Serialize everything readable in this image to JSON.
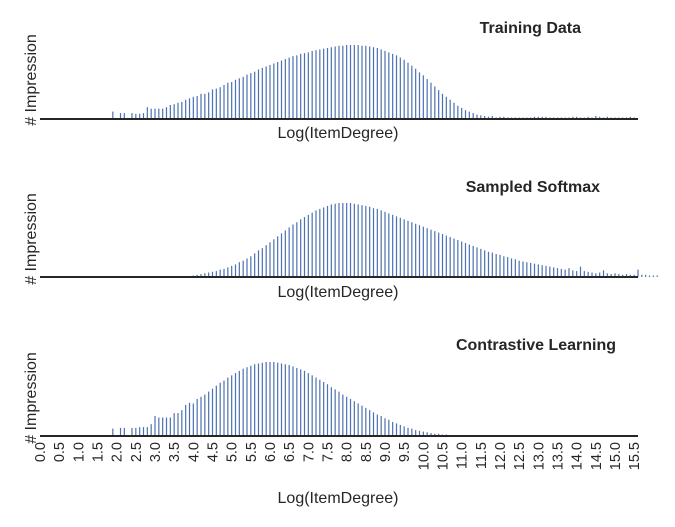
{
  "chart_data": [
    {
      "type": "bar",
      "title": "Training Data",
      "xlabel": "Log(ItemDegree)",
      "ylabel": "# Impression",
      "xlim": [
        0.0,
        15.6
      ],
      "bin_width": 0.1,
      "bar_color": "#4c72b0",
      "x_start": 1.9,
      "values": [
        0.1,
        0,
        0.08,
        0.08,
        0,
        0.08,
        0.07,
        0.07,
        0.08,
        0.16,
        0.14,
        0.14,
        0.14,
        0.14,
        0.16,
        0.19,
        0.2,
        0.22,
        0.23,
        0.26,
        0.28,
        0.3,
        0.31,
        0.34,
        0.34,
        0.36,
        0.4,
        0.41,
        0.43,
        0.46,
        0.49,
        0.5,
        0.53,
        0.55,
        0.57,
        0.6,
        0.62,
        0.64,
        0.67,
        0.69,
        0.71,
        0.73,
        0.75,
        0.77,
        0.79,
        0.81,
        0.83,
        0.85,
        0.86,
        0.88,
        0.89,
        0.9,
        0.92,
        0.93,
        0.94,
        0.95,
        0.96,
        0.97,
        0.98,
        0.99,
        0.99,
        1.0,
        1.0,
        1.0,
        1.0,
        0.99,
        0.99,
        0.98,
        0.97,
        0.96,
        0.94,
        0.92,
        0.9,
        0.88,
        0.86,
        0.83,
        0.8,
        0.76,
        0.72,
        0.68,
        0.63,
        0.59,
        0.54,
        0.49,
        0.44,
        0.39,
        0.34,
        0.3,
        0.26,
        0.22,
        0.18,
        0.15,
        0.12,
        0.1,
        0.08,
        0.06,
        0.05,
        0.04,
        0.03,
        0.04,
        0.02,
        0.03,
        0.03,
        0.02,
        0.02,
        0.02,
        0.02,
        0.02,
        0.02,
        0.02,
        0.03,
        0.03,
        0.03,
        0.03,
        0.02,
        0.02,
        0.02,
        0.02,
        0.02,
        0.02,
        0.03,
        0.03,
        0.02,
        0.02,
        0.03,
        0.02,
        0.04,
        0.03,
        0.02,
        0.03,
        0.02,
        0.02,
        0.02,
        0.02,
        0.02,
        0.03,
        0.02
      ]
    },
    {
      "type": "bar",
      "title": "Sampled Softmax",
      "xlabel": "Log(ItemDegree)",
      "ylabel": "# Impression",
      "xlim": [
        0.0,
        15.6
      ],
      "bin_width": 0.1,
      "bar_color": "#4c72b0",
      "x_start": 4.0,
      "values": [
        0.02,
        0.03,
        0.04,
        0.05,
        0.06,
        0.07,
        0.08,
        0.1,
        0.11,
        0.13,
        0.15,
        0.17,
        0.2,
        0.22,
        0.25,
        0.28,
        0.32,
        0.36,
        0.39,
        0.43,
        0.47,
        0.51,
        0.55,
        0.59,
        0.63,
        0.67,
        0.71,
        0.74,
        0.78,
        0.81,
        0.84,
        0.87,
        0.9,
        0.92,
        0.94,
        0.96,
        0.98,
        0.99,
        1.0,
        1.0,
        1.0,
        1.0,
        0.99,
        0.98,
        0.97,
        0.96,
        0.95,
        0.93,
        0.92,
        0.9,
        0.88,
        0.86,
        0.84,
        0.82,
        0.8,
        0.78,
        0.76,
        0.74,
        0.72,
        0.7,
        0.68,
        0.66,
        0.64,
        0.62,
        0.6,
        0.58,
        0.56,
        0.54,
        0.52,
        0.5,
        0.48,
        0.46,
        0.44,
        0.42,
        0.4,
        0.38,
        0.36,
        0.34,
        0.33,
        0.31,
        0.3,
        0.28,
        0.27,
        0.25,
        0.24,
        0.22,
        0.21,
        0.2,
        0.19,
        0.18,
        0.17,
        0.16,
        0.15,
        0.14,
        0.13,
        0.12,
        0.11,
        0.1,
        0.12,
        0.09,
        0.08,
        0.14,
        0.08,
        0.07,
        0.06,
        0.05,
        0.06,
        0.09,
        0.05,
        0.04,
        0.05,
        0.04,
        0.03,
        0.04,
        0.03,
        0.03,
        0.1,
        0.03,
        0.03,
        0.02,
        0.02,
        0.02
      ]
    },
    {
      "type": "bar",
      "title": "Contrastive Learning",
      "xlabel": "Log(ItemDegree)",
      "ylabel": "# Impression",
      "xlim": [
        0.0,
        15.6
      ],
      "bin_width": 0.1,
      "bar_color": "#4c72b0",
      "x_start": 1.9,
      "x_ticks": [
        "0.0",
        "0.5",
        "1.0",
        "1.5",
        "2.0",
        "2.5",
        "3.0",
        "3.5",
        "4.0",
        "4.5",
        "5.0",
        "5.5",
        "6.0",
        "6.5",
        "7.0",
        "7.5",
        "8.0",
        "8.5",
        "9.0",
        "9.5",
        "10.0",
        "10.5",
        "11.0",
        "11.5",
        "12.0",
        "12.5",
        "13.0",
        "13.5",
        "14.0",
        "14.5",
        "15.0",
        "15.5"
      ],
      "values": [
        0.1,
        0,
        0.11,
        0.11,
        0,
        0.11,
        0.11,
        0.12,
        0.12,
        0.12,
        0.16,
        0.27,
        0.25,
        0.25,
        0.25,
        0.25,
        0.31,
        0.31,
        0.35,
        0.42,
        0.45,
        0.44,
        0.5,
        0.53,
        0.56,
        0.6,
        0.64,
        0.68,
        0.72,
        0.75,
        0.79,
        0.82,
        0.85,
        0.88,
        0.91,
        0.93,
        0.95,
        0.97,
        0.98,
        0.99,
        1.0,
        1.0,
        1.0,
        0.99,
        0.98,
        0.97,
        0.96,
        0.94,
        0.92,
        0.9,
        0.88,
        0.85,
        0.82,
        0.79,
        0.76,
        0.73,
        0.7,
        0.66,
        0.63,
        0.6,
        0.56,
        0.53,
        0.5,
        0.47,
        0.44,
        0.41,
        0.38,
        0.35,
        0.32,
        0.29,
        0.27,
        0.24,
        0.22,
        0.19,
        0.17,
        0.15,
        0.13,
        0.11,
        0.1,
        0.08,
        0.07,
        0.06,
        0.05,
        0.04,
        0.03,
        0.03,
        0.02,
        0.02,
        0.01,
        0.01,
        0.01,
        0.01,
        0.01
      ]
    }
  ]
}
